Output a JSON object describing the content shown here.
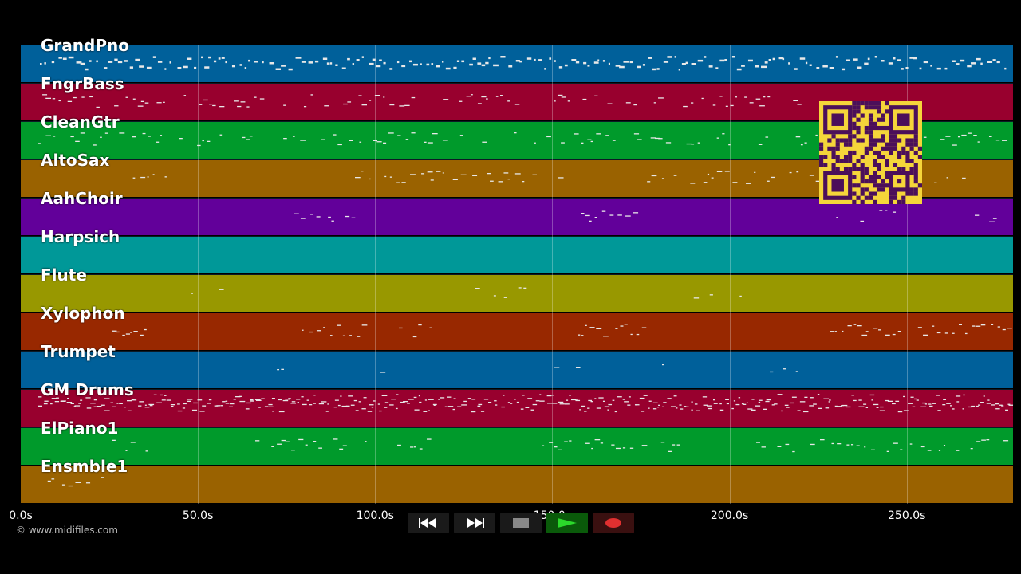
{
  "tracks": [
    {
      "name": "GrandPno",
      "color": "#00609a"
    },
    {
      "name": "FngrBass",
      "color": "#98002e"
    },
    {
      "name": "CleanGtr",
      "color": "#009a2b"
    },
    {
      "name": "AltoSax",
      "color": "#9a6200"
    },
    {
      "name": "AahChoir",
      "color": "#62009a"
    },
    {
      "name": "Harpsich",
      "color": "#009898"
    },
    {
      "name": "Flute",
      "color": "#989800"
    },
    {
      "name": "Xylophon",
      "color": "#982800"
    },
    {
      "name": "Trumpet",
      "color": "#00609a"
    },
    {
      "name": "GM Drums",
      "color": "#98002e"
    },
    {
      "name": "ElPiano1",
      "color": "#009a2b"
    },
    {
      "name": "Ensmble1",
      "color": "#9a6200"
    }
  ],
  "time_axis": {
    "ticks": [
      "0.0s",
      "50.0s",
      "100.0s",
      "150.0s",
      "200.0s",
      "250.0s"
    ],
    "tick_values": [
      0,
      50,
      100,
      150,
      200,
      250
    ],
    "max": 280
  },
  "copyright": "© www.midifiles.com",
  "transport": {
    "rewind_icon": "rewind-icon",
    "forward_icon": "fast-forward-icon",
    "stop_icon": "stop-icon",
    "play_icon": "play-icon",
    "record_icon": "record-icon",
    "play_color": "#2bd92b",
    "record_color": "#e03030"
  },
  "qr_code": {
    "color": "#f5d53a"
  }
}
